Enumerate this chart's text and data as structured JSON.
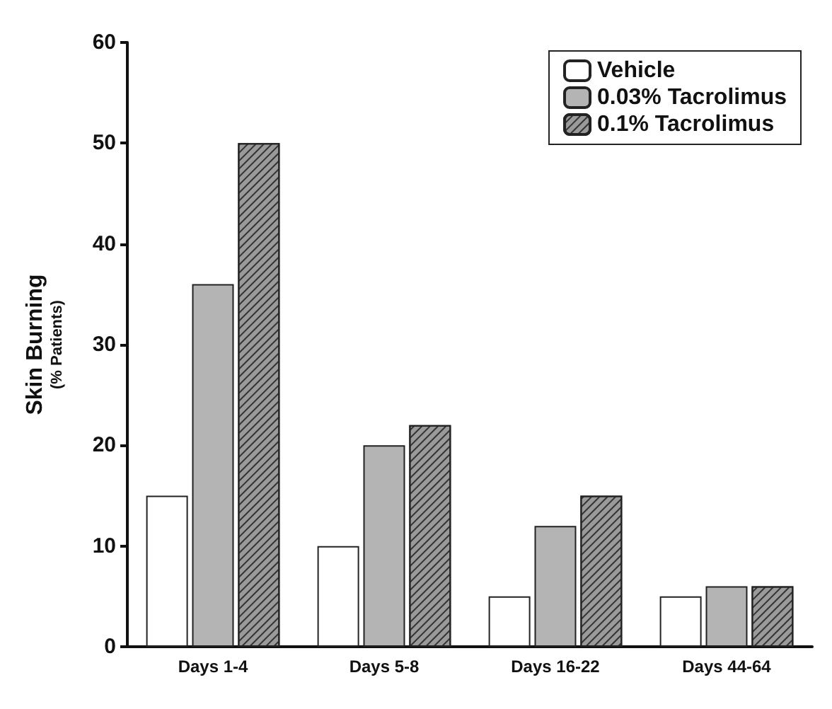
{
  "chart_data": {
    "type": "bar",
    "ylabel": "Skin Burning\n(% Patients)",
    "categories": [
      "Days 1-4",
      "Days 5-8",
      "Days 16-22",
      "Days 44-64"
    ],
    "series": [
      {
        "name": "Vehicle",
        "color": "#ffffff",
        "values": [
          15,
          10,
          5,
          5
        ]
      },
      {
        "name": "0.03% Tacrolimus",
        "color": "#b4b4b4",
        "values": [
          36,
          20,
          12,
          6
        ]
      },
      {
        "name": "0.1% Tacrolimus",
        "color": "#9a9a9a",
        "values": [
          50,
          22,
          15,
          6
        ]
      }
    ],
    "ylim": [
      0,
      60
    ],
    "yticks": [
      0,
      10,
      20,
      30,
      40,
      50,
      60
    ],
    "grid": false,
    "legend": "top right"
  }
}
